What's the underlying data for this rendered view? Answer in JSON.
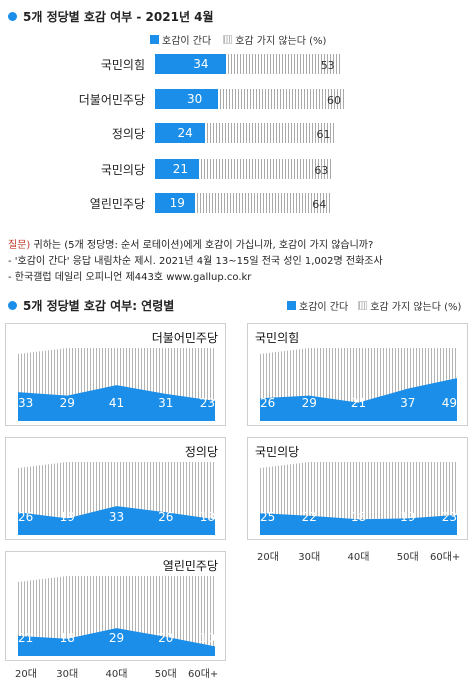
{
  "section1": {
    "title": "5개 정당별 호감 여부 - 2021년 4월",
    "legend_positive": "호감이 간다",
    "legend_negative": "호감 가지 않는다 (%)"
  },
  "section2": {
    "title": "5개 정당별 호감 여부: 연령별",
    "legend_positive": "호감이 간다",
    "legend_negative": "호감 가지 않는다 (%)"
  },
  "notes": {
    "q_label": "질문)",
    "q_text": " 귀하는 (5개 정당명: 순서 로테이션)에게 호감이 가십니까, 호감이 가지 않습니까?",
    "line2": "- '호감이 간다' 응답 내림차순 제시. 2021년 4월 13~15일 전국 성인 1,002명 전화조사",
    "line3": "- 한국갤럽 데일리 오피니언 제443호 www.gallup.co.kr"
  },
  "colors": {
    "positive": "#1a8ee8",
    "negative_hatch": "#a9a9a9"
  },
  "chart_data": [
    {
      "type": "bar",
      "title": "5개 정당별 호감 여부 - 2021년 4월",
      "categories": [
        "국민의힘",
        "더불어민주당",
        "정의당",
        "국민의당",
        "열린민주당"
      ],
      "series": [
        {
          "name": "호감이 간다",
          "values": [
            34,
            30,
            24,
            21,
            19
          ]
        },
        {
          "name": "호감 가지 않는다",
          "values": [
            53,
            60,
            61,
            63,
            64
          ]
        }
      ],
      "ylim": [
        0,
        100
      ]
    },
    {
      "type": "area",
      "title": "5개 정당별 호감 여부: 연령별",
      "x": [
        "20대",
        "30대",
        "40대",
        "50대",
        "60대+"
      ],
      "panels": [
        {
          "name": "더불어민주당",
          "values": [
            33,
            29,
            41,
            31,
            23
          ]
        },
        {
          "name": "국민의힘",
          "values": [
            26,
            29,
            21,
            37,
            49
          ]
        },
        {
          "name": "정의당",
          "values": [
            26,
            19,
            33,
            26,
            18
          ]
        },
        {
          "name": "국민의당",
          "values": [
            25,
            22,
            18,
            19,
            23
          ]
        },
        {
          "name": "열린민주당",
          "values": [
            21,
            18,
            29,
            20,
            10
          ]
        }
      ],
      "ylim": [
        0,
        100
      ]
    }
  ]
}
